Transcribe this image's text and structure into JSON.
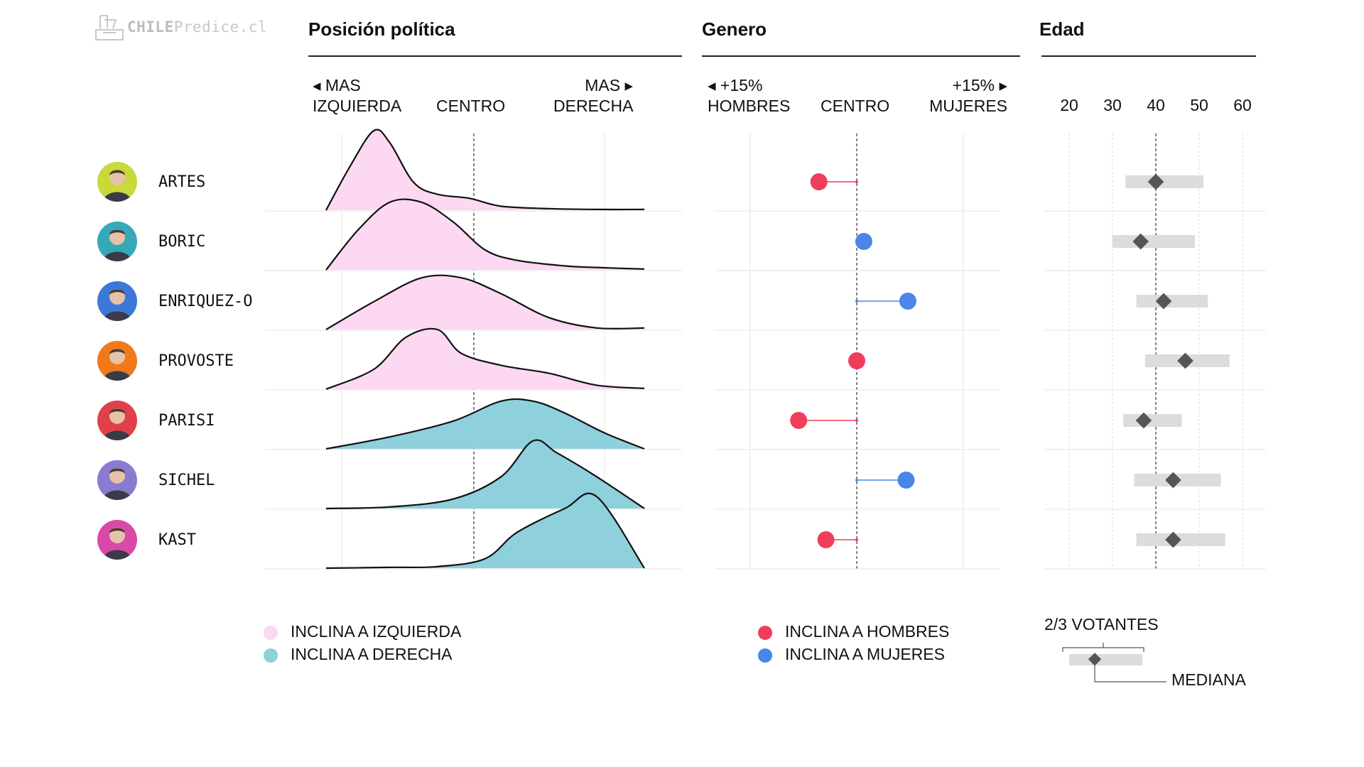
{
  "logo": {
    "brand": "CHILE",
    "rest": "Predice.cl"
  },
  "sections": {
    "political": "Posición política",
    "gender": "Genero",
    "age": "Edad"
  },
  "political_axis": {
    "left": [
      "◂ MAS",
      "IZQUIERDA"
    ],
    "center": "CENTRO",
    "right": [
      "MAS ▸",
      "DERECHA"
    ]
  },
  "gender_axis": {
    "left": [
      "◂ +15%",
      "HOMBRES"
    ],
    "center": "CENTRO",
    "right": [
      "+15%  ▸",
      "MUJERES"
    ]
  },
  "age_ticks": [
    "20",
    "30",
    "40",
    "50",
    "60"
  ],
  "candidates": [
    {
      "name": "ARTES",
      "avatar_color": "#c8d93a",
      "lean": "left"
    },
    {
      "name": "BORIC",
      "avatar_color": "#35a9b8",
      "lean": "left"
    },
    {
      "name": "ENRIQUEZ-O",
      "avatar_color": "#3b78d8",
      "lean": "left"
    },
    {
      "name": "PROVOSTE",
      "avatar_color": "#f07a1a",
      "lean": "left"
    },
    {
      "name": "PARISI",
      "avatar_color": "#e0404a",
      "lean": "right"
    },
    {
      "name": "SICHEL",
      "avatar_color": "#8a7ad0",
      "lean": "right"
    },
    {
      "name": "KAST",
      "avatar_color": "#d94aa8",
      "lean": "right"
    }
  ],
  "legend": {
    "political": [
      {
        "label": "INCLINA A IZQUIERDA",
        "color": "#fdd8f2"
      },
      {
        "label": "INCLINA A DERECHA",
        "color": "#8ed0dc"
      }
    ],
    "gender": [
      {
        "label": "INCLINA A HOMBRES",
        "color": "#ef3e5a"
      },
      {
        "label": "INCLINA A MUJERES",
        "color": "#4a86e8"
      }
    ],
    "age": {
      "range_label": "2/3 VOTANTES",
      "median_label": "MEDIANA"
    }
  },
  "chart_data": [
    {
      "type": "area",
      "chart": "political-position-ridgeline",
      "x_range": [
        -1,
        1
      ],
      "series": [
        {
          "name": "ARTES",
          "x": [
            -1,
            -0.85,
            -0.7,
            -0.6,
            -0.45,
            -0.3,
            -0.1,
            0.1,
            0.4,
            0.7,
            1
          ],
          "y": [
            0,
            0.55,
            1,
            0.85,
            0.35,
            0.2,
            0.15,
            0.05,
            0.02,
            0.01,
            0.01
          ]
        },
        {
          "name": "BORIC",
          "x": [
            -1,
            -0.8,
            -0.6,
            -0.4,
            -0.2,
            0,
            0.2,
            0.5,
            0.7,
            1
          ],
          "y": [
            0,
            0.5,
            0.85,
            0.85,
            0.6,
            0.25,
            0.12,
            0.05,
            0.03,
            0.01
          ]
        },
        {
          "name": "ENRIQUEZ-O",
          "x": [
            -1,
            -0.7,
            -0.4,
            -0.15,
            0.1,
            0.4,
            0.7,
            1
          ],
          "y": [
            0,
            0.35,
            0.65,
            0.65,
            0.45,
            0.15,
            0.02,
            0.02
          ]
        },
        {
          "name": "PROVOSTE",
          "x": [
            -1,
            -0.7,
            -0.5,
            -0.3,
            -0.15,
            0.1,
            0.4,
            0.7,
            1
          ],
          "y": [
            0,
            0.25,
            0.65,
            0.75,
            0.45,
            0.3,
            0.2,
            0.05,
            0.01
          ]
        },
        {
          "name": "PARISI",
          "x": [
            -1,
            -0.6,
            -0.2,
            0.1,
            0.3,
            0.5,
            0.75,
            1
          ],
          "y": [
            0,
            0.15,
            0.35,
            0.6,
            0.6,
            0.45,
            0.2,
            0
          ]
        },
        {
          "name": "SICHEL",
          "x": [
            -1,
            -0.6,
            -0.2,
            0.1,
            0.3,
            0.45,
            0.7,
            1
          ],
          "y": [
            0,
            0.02,
            0.12,
            0.4,
            0.85,
            0.7,
            0.4,
            0
          ]
        },
        {
          "name": "KAST",
          "x": [
            -1,
            -0.6,
            -0.3,
            0,
            0.2,
            0.5,
            0.7,
            1
          ],
          "y": [
            0,
            0.01,
            0.02,
            0.12,
            0.45,
            0.75,
            0.9,
            0
          ]
        }
      ]
    },
    {
      "type": "scatter",
      "chart": "gender-lean-lollipop",
      "x_range": [
        -15,
        15
      ],
      "x_unit": "%",
      "categories": [
        "ARTES",
        "BORIC",
        "ENRIQUEZ-O",
        "PROVOSTE",
        "PARISI",
        "SICHEL",
        "KAST"
      ],
      "values": [
        -4.3,
        0.8,
        5.8,
        0,
        -6.6,
        5.6,
        -3.5
      ]
    },
    {
      "type": "scatter",
      "chart": "age-range-median",
      "x_ticks": [
        20,
        30,
        40,
        50,
        60
      ],
      "reference_line": 40,
      "categories": [
        "ARTES",
        "BORIC",
        "ENRIQUEZ-O",
        "PROVOSTE",
        "PARISI",
        "SICHEL",
        "KAST"
      ],
      "range_low": [
        33,
        30,
        35.5,
        37.5,
        32.5,
        35,
        35.5
      ],
      "range_high": [
        51,
        49,
        52,
        57,
        46,
        55,
        56
      ],
      "median": [
        40,
        36.5,
        41.8,
        46.8,
        37.2,
        44,
        44
      ]
    }
  ]
}
